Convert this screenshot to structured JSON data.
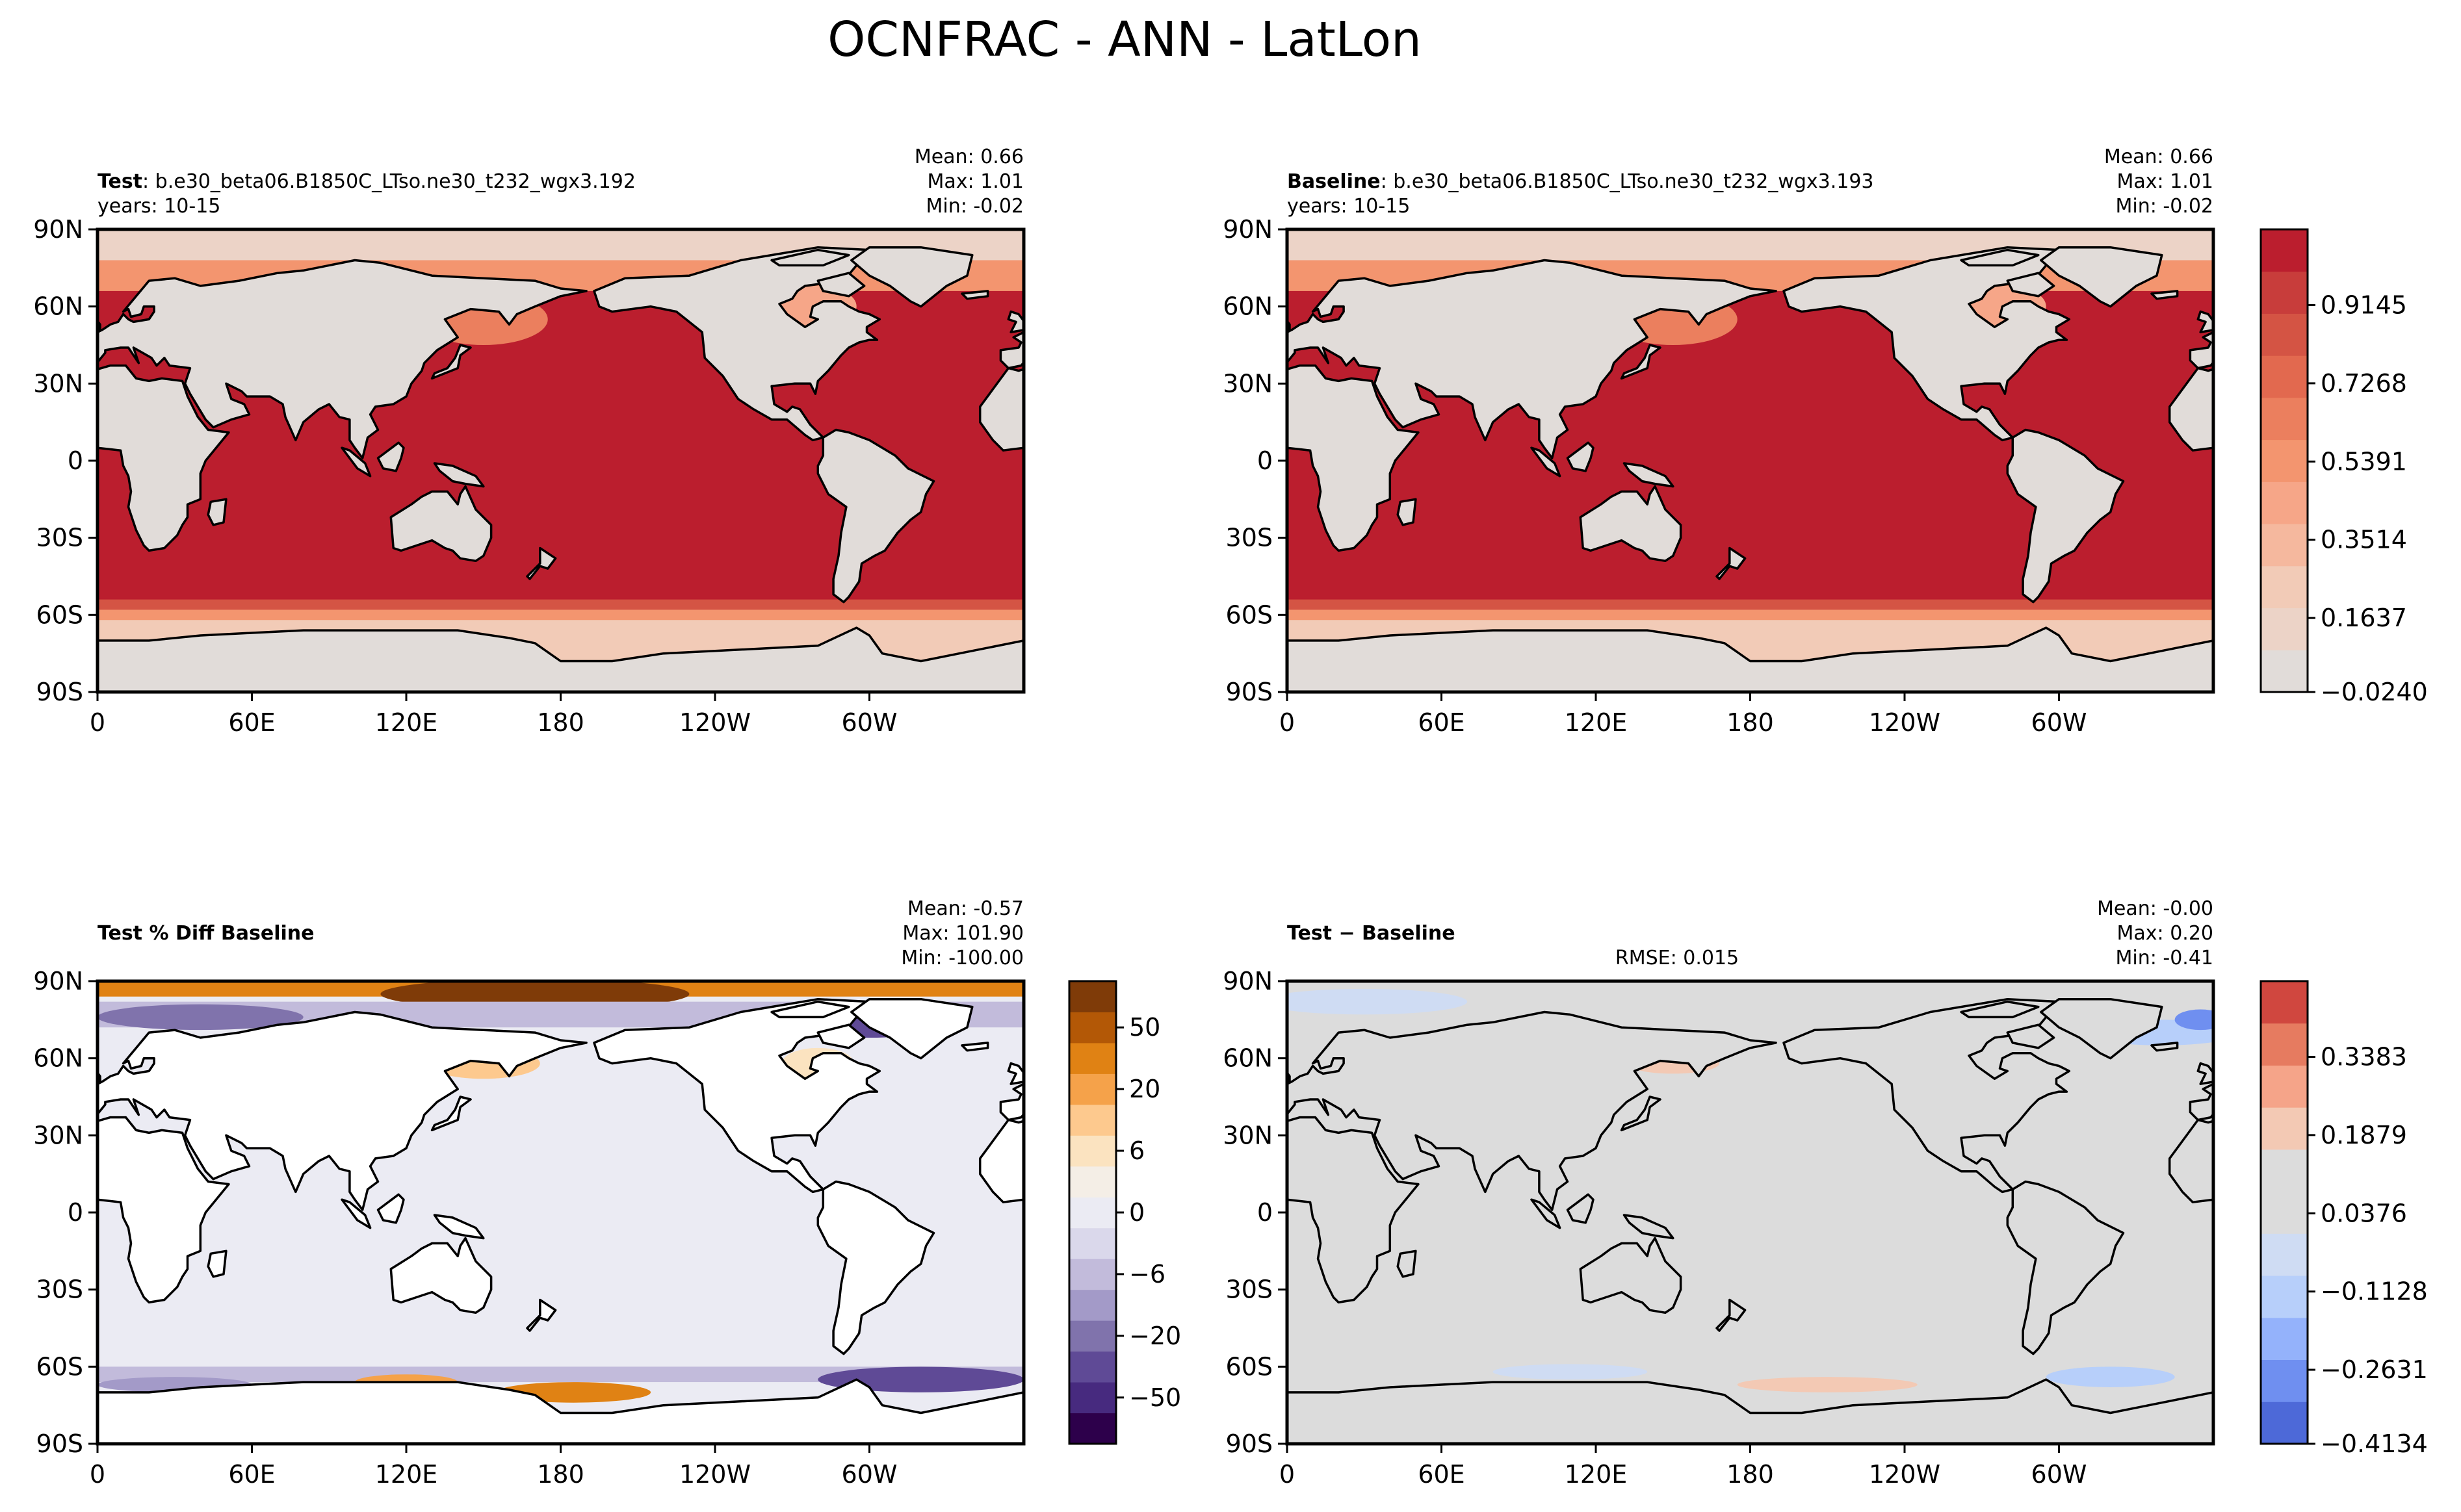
{
  "title": "OCNFRAC - ANN - LatLon",
  "lat_ticks": [
    "90N",
    "60N",
    "30N",
    "0",
    "30S",
    "60S",
    "90S"
  ],
  "lon_ticks": [
    "0",
    "60E",
    "120E",
    "180",
    "120W",
    "60W"
  ],
  "panels": {
    "test": {
      "label_bold": "Test",
      "label_rest": ": b.e30_beta06.B1850C_LTso.ne30_t232_wgx3.192",
      "years": "years: 10-15",
      "stats": [
        "Mean:  0.66",
        "Max:  1.01",
        "Min: -0.02"
      ]
    },
    "baseline": {
      "label_bold": "Baseline",
      "label_rest": ": b.e30_beta06.B1850C_LTso.ne30_t232_wgx3.193",
      "years": "years: 10-15",
      "stats": [
        "Mean:  0.66",
        "Max:  1.01",
        "Min: -0.02"
      ]
    },
    "pctdiff": {
      "label_bold": "Test % Diff Baseline",
      "stats": [
        "Mean: -0.57",
        "Max: 101.90",
        "Min: -100.00"
      ]
    },
    "diff": {
      "label_bold": "Test − Baseline",
      "rmse": "RMSE: 0.015",
      "stats": [
        "Mean: -0.00",
        "Max:  0.20",
        "Min: -0.41"
      ]
    }
  },
  "colorbars": {
    "main": {
      "ticks": [
        "0.9145",
        "0.7268",
        "0.5391",
        "0.3514",
        "0.1637",
        "−0.0240"
      ],
      "colors": [
        "#e1dcd9",
        "#ecd3c7",
        "#f2cbb7",
        "#f5b89e",
        "#f6a688",
        "#f3956f",
        "#eb7f5e",
        "#e2694f",
        "#d45444",
        "#c83d3b",
        "#bb1e2e"
      ]
    },
    "pct": {
      "ticks": [
        "50",
        "20",
        "6",
        "0",
        "−6",
        "−20",
        "−50"
      ],
      "colors": [
        "#2d004b",
        "#472a7f",
        "#5f4a96",
        "#8073ac",
        "#a39ac8",
        "#c2bbdb",
        "#dad8eb",
        "#ebebf3",
        "#f4eee6",
        "#fbe3c0",
        "#fdc98e",
        "#f5a24a",
        "#e08214",
        "#b35806",
        "#7f3b08"
      ]
    },
    "diff": {
      "ticks": [
        "0.3383",
        "0.1879",
        "0.0376",
        "−0.1128",
        "−0.2631",
        "−0.4134"
      ],
      "colors": [
        "#4d69d8",
        "#6f8ff0",
        "#94b2fb",
        "#b7cffa",
        "#cfdcf3",
        "#dcdcdc",
        "#dcdcdc",
        "#f3c9b4",
        "#f5a489",
        "#e67b60",
        "#d0473f"
      ]
    }
  },
  "chart_data": [
    {
      "type": "heatmap",
      "title": "Test",
      "variable": "OCNFRAC",
      "xlim": [
        0,
        360
      ],
      "ylim": [
        -90,
        90
      ],
      "xticks": [
        0,
        60,
        120,
        180,
        240,
        300
      ],
      "yticks": [
        90,
        60,
        30,
        0,
        -30,
        -60,
        -90
      ],
      "stats": {
        "mean": 0.66,
        "max": 1.01,
        "min": -0.02
      },
      "colorbar": {
        "min": -0.024,
        "max": 1.01,
        "levels": [
          -0.024,
          0.1637,
          0.3514,
          0.5391,
          0.7268,
          0.9145
        ]
      }
    },
    {
      "type": "heatmap",
      "title": "Baseline",
      "variable": "OCNFRAC",
      "xlim": [
        0,
        360
      ],
      "ylim": [
        -90,
        90
      ],
      "stats": {
        "mean": 0.66,
        "max": 1.01,
        "min": -0.02
      },
      "colorbar": {
        "min": -0.024,
        "max": 1.01,
        "levels": [
          -0.024,
          0.1637,
          0.3514,
          0.5391,
          0.7268,
          0.9145
        ]
      }
    },
    {
      "type": "heatmap",
      "title": "Test % Diff Baseline",
      "xlim": [
        0,
        360
      ],
      "ylim": [
        -90,
        90
      ],
      "stats": {
        "mean": -0.57,
        "max": 101.9,
        "min": -100.0
      },
      "colorbar": {
        "ticks": [
          -50,
          -20,
          -6,
          0,
          6,
          20,
          50
        ]
      }
    },
    {
      "type": "heatmap",
      "title": "Test − Baseline",
      "xlim": [
        0,
        360
      ],
      "ylim": [
        -90,
        90
      ],
      "rmse": 0.015,
      "stats": {
        "mean": -0.0,
        "max": 0.2,
        "min": -0.41
      },
      "colorbar": {
        "min": -0.4134,
        "max": 0.4134,
        "ticks": [
          -0.4134,
          -0.2631,
          -0.1128,
          0.0376,
          0.1879,
          0.3383
        ]
      }
    }
  ]
}
